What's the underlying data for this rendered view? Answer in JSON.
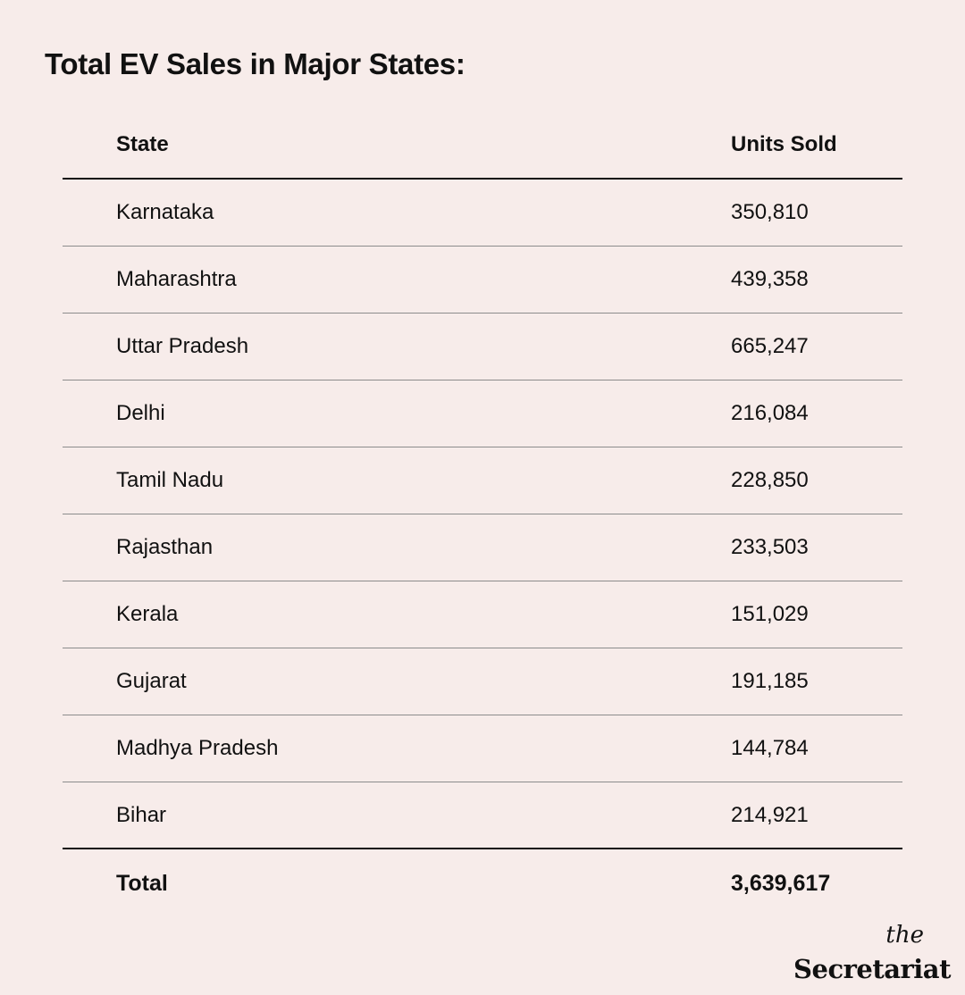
{
  "title": "Total EV Sales in Major States:",
  "chart_data": {
    "type": "table",
    "columns": [
      "State",
      "Units Sold"
    ],
    "rows": [
      {
        "state": "Karnataka",
        "units": "350,810"
      },
      {
        "state": "Maharashtra",
        "units": "439,358"
      },
      {
        "state": "Uttar Pradesh",
        "units": "665,247"
      },
      {
        "state": "Delhi",
        "units": "216,084"
      },
      {
        "state": "Tamil Nadu",
        "units": "228,850"
      },
      {
        "state": "Rajasthan",
        "units": "233,503"
      },
      {
        "state": "Kerala",
        "units": "151,029"
      },
      {
        "state": "Gujarat",
        "units": "191,185"
      },
      {
        "state": "Madhya Pradesh",
        "units": "144,784"
      },
      {
        "state": "Bihar",
        "units": "214,921"
      }
    ],
    "total": {
      "label": "Total",
      "units": "3,639,617"
    }
  },
  "logo": {
    "the": "the",
    "name": "Secretariat"
  }
}
